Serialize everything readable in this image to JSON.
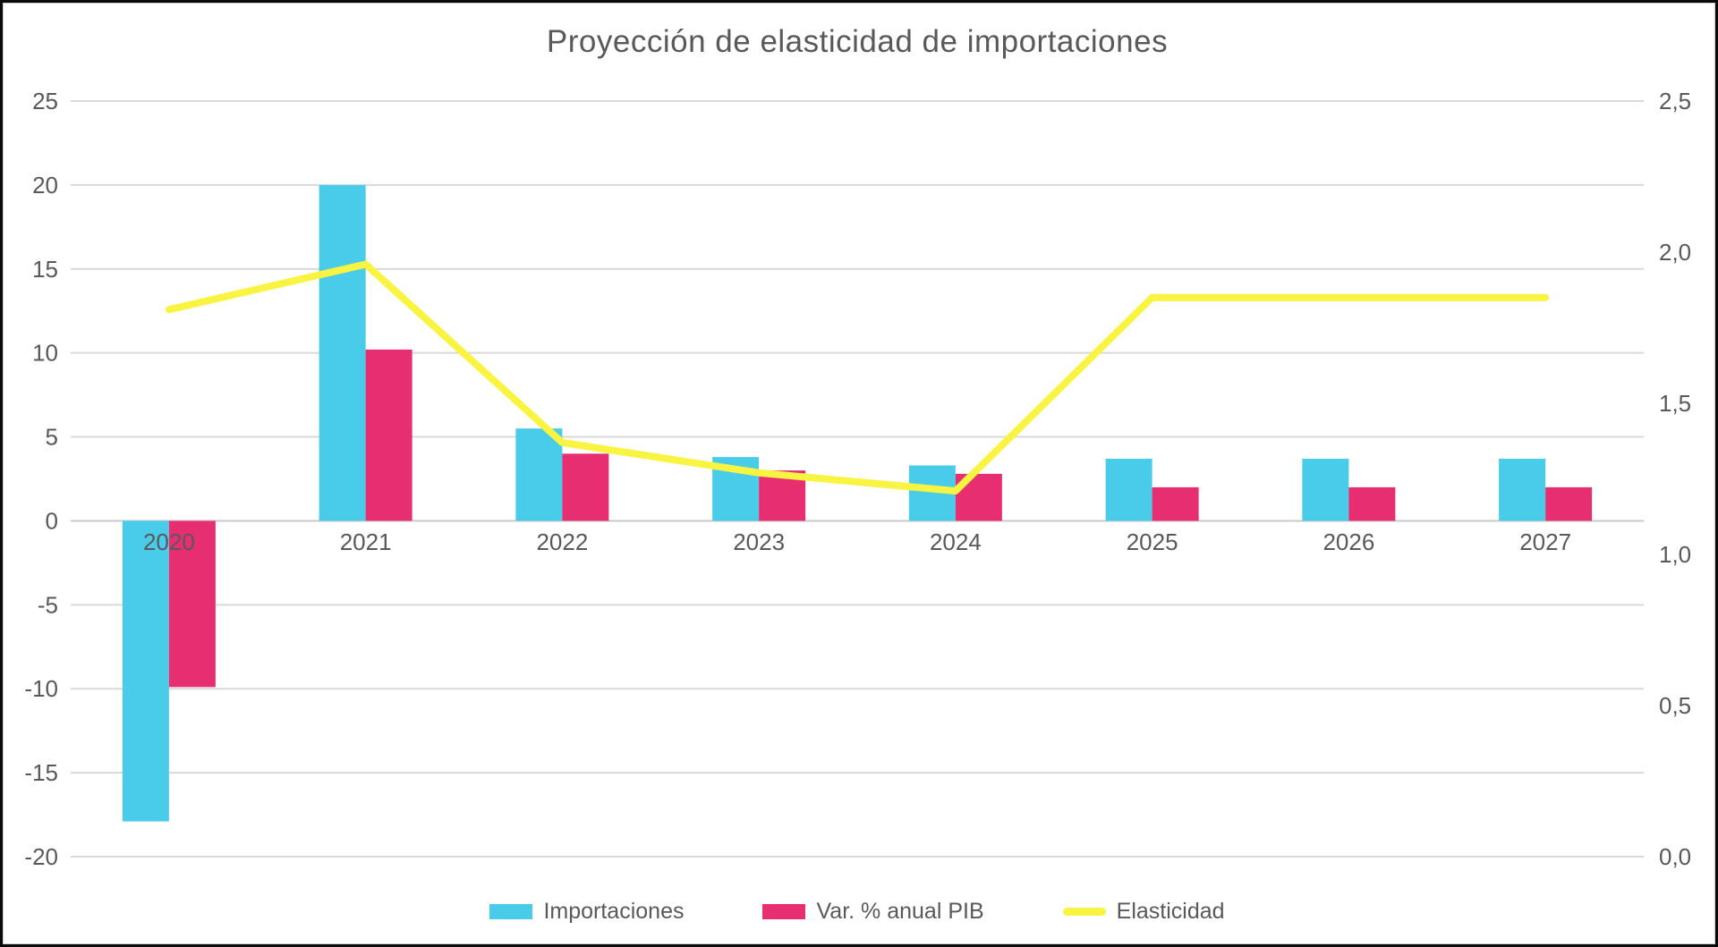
{
  "chart_data": {
    "type": "bar",
    "subtype": "combo-bar-line-dual-axis",
    "title": "Proyección de elasticidad de importaciones",
    "categories": [
      "2020",
      "2021",
      "2022",
      "2023",
      "2024",
      "2025",
      "2026",
      "2027"
    ],
    "series": [
      {
        "name": "Importaciones",
        "kind": "bar",
        "axis": "left",
        "color": "#49CBEA",
        "values": [
          -17.9,
          20,
          5.5,
          3.8,
          3.3,
          3.7,
          3.7,
          3.7
        ]
      },
      {
        "name": "Var. % anual PIB",
        "kind": "bar",
        "axis": "left",
        "color": "#E72E71",
        "values": [
          -9.9,
          10.2,
          4.0,
          3.0,
          2.8,
          2.0,
          2.0,
          2.0
        ]
      },
      {
        "name": "Elasticidad",
        "kind": "line",
        "axis": "right",
        "color": "#F9F342",
        "values": [
          1.81,
          1.96,
          1.37,
          1.27,
          1.21,
          1.85,
          1.85,
          1.85
        ]
      }
    ],
    "left_axis": {
      "min": -20,
      "max": 25,
      "step": 5,
      "ticks": [
        "25",
        "20",
        "15",
        "10",
        "5",
        "0",
        "-5",
        "-10",
        "-15",
        "-20"
      ]
    },
    "right_axis": {
      "min": 0,
      "max": 2.5,
      "step": 0.5,
      "ticks": [
        "2,5",
        "2,0",
        "1,5",
        "1,0",
        "0,5",
        "0,0"
      ]
    },
    "grid": true,
    "legend_position": "bottom",
    "colors": {
      "grid": "#D9D9D9",
      "zero_line": "#C9C9C9",
      "text": "#595959"
    }
  }
}
